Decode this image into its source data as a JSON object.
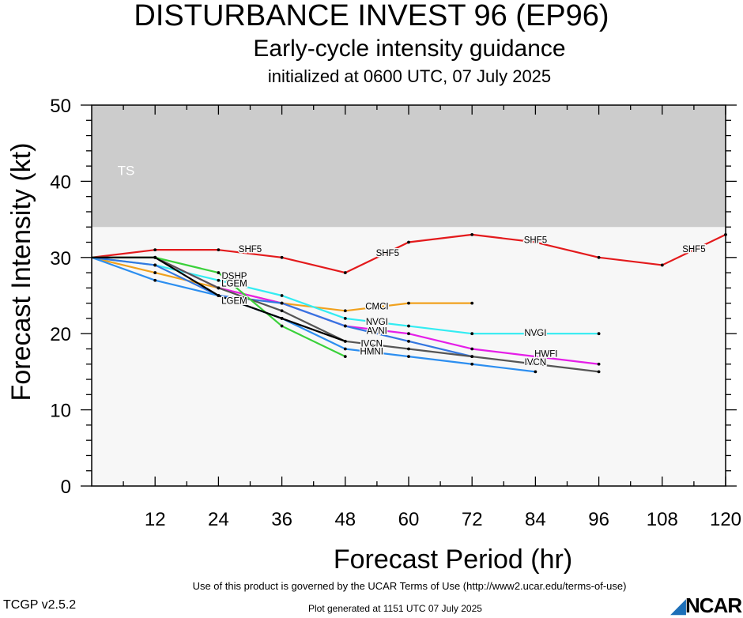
{
  "header": {
    "title": "DISTURBANCE INVEST 96 (EP96)",
    "subtitle": "Early-cycle intensity guidance",
    "initialized": "initialized at 0600 UTC, 07 July 2025"
  },
  "footer": {
    "terms": "Use of this product is governed by the UCAR Terms of Use (http://www2.ucar.edu/terms-of-use)",
    "version": "TCGP v2.5.2",
    "generated": "Plot generated at 1151 UTC   07 July 2025",
    "logo": "NCAR"
  },
  "chart_data": {
    "type": "line",
    "xlabel": "Forecast Period (hr)",
    "ylabel": "Forecast Intensity (kt)",
    "xlim": [
      0,
      120
    ],
    "ylim": [
      0,
      50
    ],
    "xticks": [
      12,
      24,
      36,
      48,
      60,
      72,
      84,
      96,
      108,
      120
    ],
    "yticks": [
      0,
      10,
      20,
      30,
      40,
      50
    ],
    "band": {
      "label": "TS",
      "from": 34,
      "to": 50,
      "color": "#cccccc"
    },
    "plot_background": "#f7f7f7",
    "series": [
      {
        "name": "SHF5",
        "color": "#e31a1c",
        "x": [
          0,
          12,
          24,
          36,
          48,
          60,
          72,
          84,
          96,
          108,
          120
        ],
        "y": [
          30,
          31,
          31,
          30,
          28,
          32,
          33,
          32,
          30,
          29,
          33
        ],
        "labels": [
          {
            "x": 30,
            "y": 31
          },
          {
            "x": 56,
            "y": 30.5
          },
          {
            "x": 84,
            "y": 32.2
          },
          {
            "x": 114,
            "y": 31
          }
        ]
      },
      {
        "name": "CMCI",
        "color": "#f0a11e",
        "x": [
          0,
          12,
          24,
          36,
          48,
          60,
          72
        ],
        "y": [
          30,
          28,
          26,
          24,
          23,
          24,
          24
        ],
        "labels": [
          {
            "x": 54,
            "y": 23.5
          }
        ]
      },
      {
        "name": "NVGI",
        "color": "#33ecf2",
        "x": [
          0,
          12,
          24,
          36,
          48,
          60,
          72,
          84,
          96
        ],
        "y": [
          30,
          29,
          27,
          25,
          22,
          21,
          20,
          20,
          20
        ],
        "labels": [
          {
            "x": 54,
            "y": 21.5
          },
          {
            "x": 84,
            "y": 20
          }
        ]
      },
      {
        "name": "HWFI",
        "color": "#e51ee8",
        "x": [
          0,
          12,
          24,
          36,
          48,
          60,
          72,
          84,
          96
        ],
        "y": [
          30,
          30,
          26,
          24,
          21,
          20,
          18,
          17,
          16
        ],
        "labels": [
          {
            "x": 86,
            "y": 17.3
          }
        ]
      },
      {
        "name": "AVNI",
        "color": "#3477e0",
        "x": [
          0,
          12,
          24,
          36,
          48,
          60,
          72
        ],
        "y": [
          30,
          29,
          25,
          24,
          21,
          19,
          17
        ],
        "labels": [
          {
            "x": 54,
            "y": 20.3
          }
        ]
      },
      {
        "name": "IVCN",
        "color": "#555555",
        "x": [
          0,
          12,
          24,
          36,
          48,
          60,
          72,
          84,
          96
        ],
        "y": [
          30,
          30,
          26,
          23,
          19,
          18,
          17,
          16,
          15
        ],
        "labels": [
          {
            "x": 53,
            "y": 18.6
          },
          {
            "x": 84,
            "y": 16.2
          }
        ]
      },
      {
        "name": "HMNI",
        "color": "#2c8ef0",
        "x": [
          0,
          12,
          24,
          36,
          48,
          60,
          72,
          84
        ],
        "y": [
          30,
          27,
          25,
          22,
          18,
          17,
          16,
          15
        ],
        "labels": [
          {
            "x": 53,
            "y": 17.6
          }
        ]
      },
      {
        "name": "DSHP",
        "color": "#3ad13a",
        "x": [
          0,
          12,
          24,
          36,
          48
        ],
        "y": [
          30,
          30,
          28,
          21,
          17
        ],
        "labels": [
          {
            "x": 27,
            "y": 27.5
          }
        ]
      },
      {
        "name": "LGEM",
        "color": "#000000",
        "x": [
          0,
          12,
          24,
          36,
          48
        ],
        "y": [
          30,
          30,
          25,
          22,
          19
        ],
        "labels": [
          {
            "x": 27,
            "y": 26.5
          },
          {
            "x": 27,
            "y": 24.2
          }
        ]
      }
    ]
  }
}
